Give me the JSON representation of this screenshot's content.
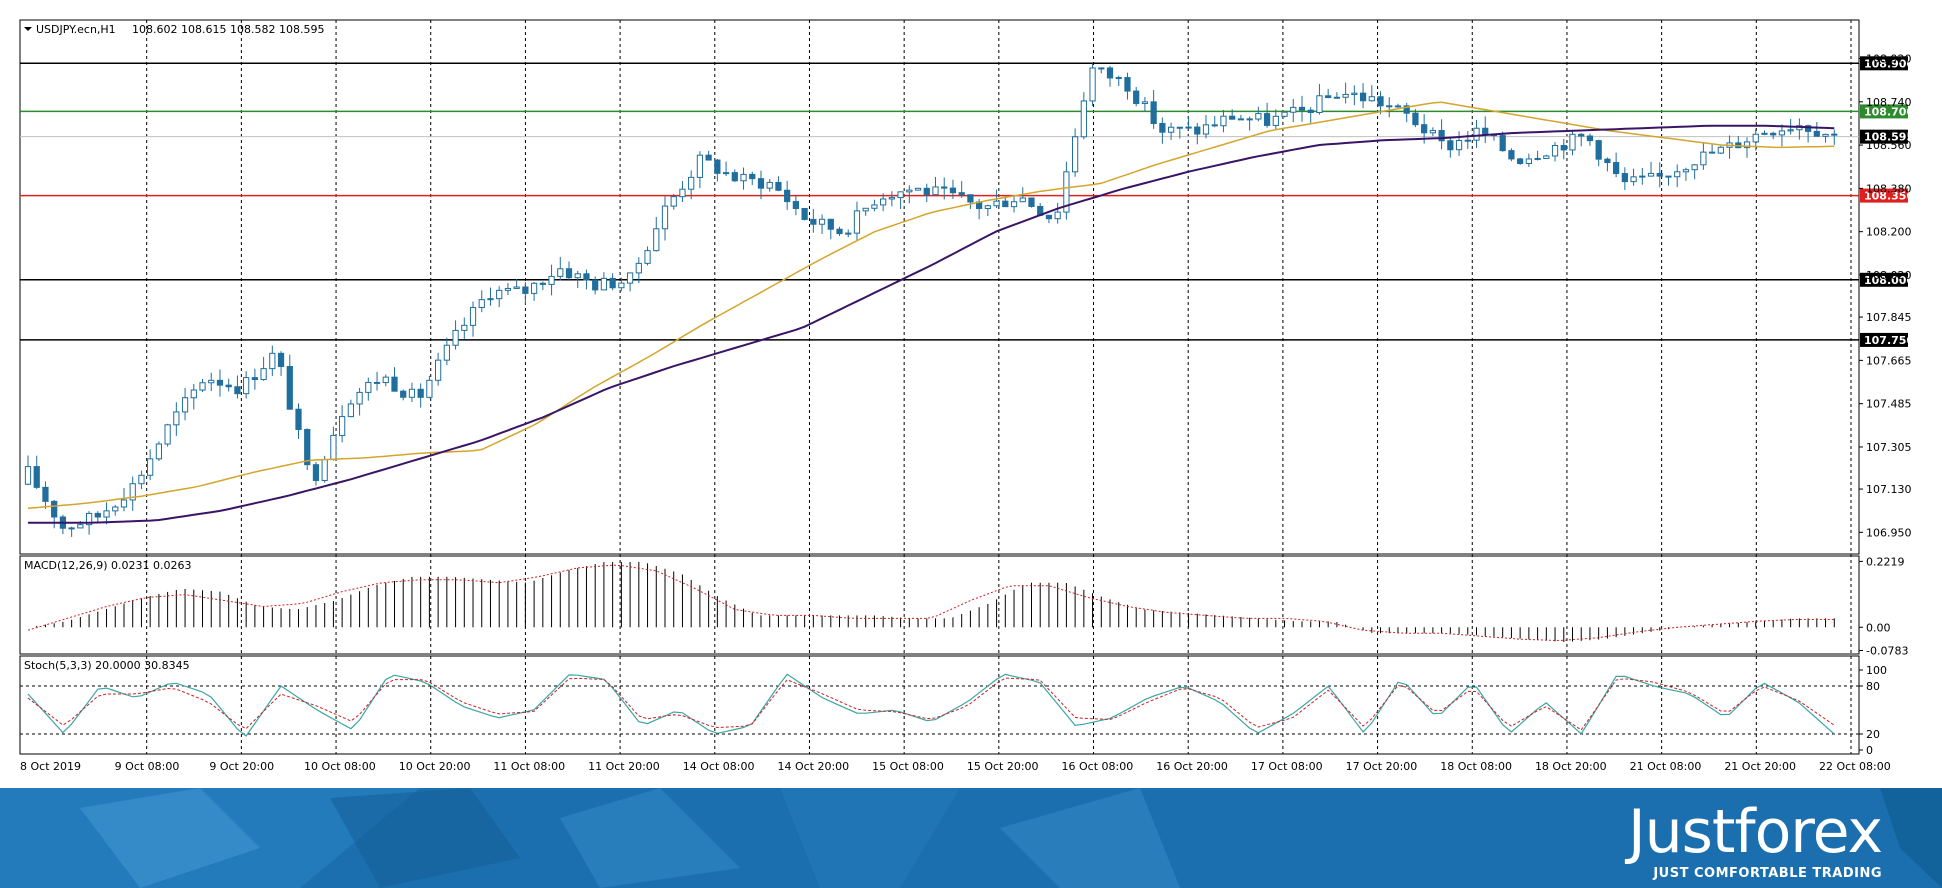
{
  "chart_header": {
    "symbol": "USDJPY.ecn,H1",
    "ohlc": "108.602 108.615 108.582 108.595"
  },
  "indicators": {
    "macd_label": "MACD(12,26,9) 0.0231 0.0263",
    "stoch_label": "Stoch(5,3,3) 20.0000 30.8345"
  },
  "branding": {
    "name": "Justforex",
    "slogan": "JUST COMFORTABLE TRADING"
  },
  "colors": {
    "candle": "#1f6e9e",
    "ma_fast": "#d4a52a",
    "ma_slow": "#3a1466",
    "support_line": "#e02020",
    "resistance_line": "#2d8a2d",
    "level_line": "#000000",
    "current_price": "#000000",
    "macd_signal": "#cc2222",
    "stoch_main": "#3aa6a6",
    "stoch_signal": "#cc2222",
    "banner": "#1b6fae"
  },
  "chart_data": [
    {
      "type": "candlestick",
      "title": "USDJPY.ecn,H1",
      "ylim": [
        106.86,
        109.08
      ],
      "y_ticks": [
        "108.920",
        "108.740",
        "108.560",
        "108.380",
        "108.200",
        "108.020",
        "107.845",
        "107.665",
        "107.485",
        "107.305",
        "107.130",
        "106.950"
      ],
      "x_ticks": [
        "8 Oct 2019",
        "9 Oct 08:00",
        "9 Oct 20:00",
        "10 Oct 08:00",
        "10 Oct 20:00",
        "11 Oct 08:00",
        "11 Oct 20:00",
        "14 Oct 08:00",
        "14 Oct 20:00",
        "15 Oct 08:00",
        "15 Oct 20:00",
        "16 Oct 08:00",
        "16 Oct 20:00",
        "17 Oct 08:00",
        "17 Oct 20:00",
        "18 Oct 08:00",
        "18 Oct 20:00",
        "21 Oct 08:00",
        "21 Oct 20:00",
        "22 Oct 08:00"
      ],
      "close_anchors": [
        107.2,
        106.97,
        107.02,
        107.15,
        107.4,
        107.6,
        107.55,
        107.7,
        107.15,
        107.5,
        107.6,
        107.5,
        107.75,
        107.95,
        107.95,
        108.05,
        107.98,
        108.0,
        108.3,
        108.5,
        108.42,
        108.4,
        108.25,
        108.2,
        108.35,
        108.38,
        108.35,
        108.3,
        108.35,
        108.25,
        108.88,
        108.82,
        108.62,
        108.62,
        108.68,
        108.66,
        108.7,
        108.78,
        108.75,
        108.68,
        108.55,
        108.62,
        108.5,
        108.55,
        108.6,
        108.4,
        108.42,
        108.5,
        108.55,
        108.62,
        108.65,
        108.6
      ],
      "candle_count": 208,
      "x_range_index": [
        0,
        208
      ],
      "moving_averages": [
        {
          "name": "MA fast",
          "values": [
            107.05,
            107.07,
            107.1,
            107.14,
            107.2,
            107.25,
            107.26,
            107.28,
            107.29,
            107.4,
            107.55,
            107.68,
            107.82,
            107.95,
            108.08,
            108.2,
            108.28,
            108.33,
            108.37,
            108.4,
            108.48,
            108.55,
            108.62,
            108.66,
            108.7,
            108.74,
            108.7,
            108.66,
            108.62,
            108.59,
            108.56,
            108.55,
            108.555
          ]
        },
        {
          "name": "MA slow",
          "values": [
            106.99,
            106.99,
            107.0,
            107.04,
            107.1,
            107.17,
            107.25,
            107.33,
            107.43,
            107.55,
            107.64,
            107.72,
            107.8,
            107.93,
            108.06,
            108.2,
            108.3,
            108.38,
            108.45,
            108.51,
            108.56,
            108.58,
            108.59,
            108.61,
            108.62,
            108.63,
            108.64,
            108.64,
            108.63
          ]
        }
      ],
      "horizontal_levels": [
        {
          "value": 108.9,
          "label": "108.900",
          "color": "#000000"
        },
        {
          "value": 108.7,
          "label": "108.700",
          "color": "#2d8a2d"
        },
        {
          "value": 108.595,
          "label": "108.595",
          "color": "#000000"
        },
        {
          "value": 108.35,
          "label": "108.350",
          "color": "#e02020"
        },
        {
          "value": 108.0,
          "label": "108.000",
          "color": "#000000"
        },
        {
          "value": 107.75,
          "label": "107.750",
          "color": "#000000"
        }
      ]
    },
    {
      "type": "bar",
      "title": "MACD(12,26,9) 0.0231 0.0263",
      "ylim": [
        -0.09,
        0.24
      ],
      "y_ticks": [
        "0.2219",
        "0.00",
        "-0.0783"
      ],
      "histogram_anchors": [
        0.0,
        0.02,
        0.06,
        0.1,
        0.13,
        0.12,
        0.07,
        0.06,
        0.09,
        0.14,
        0.17,
        0.17,
        0.16,
        0.15,
        0.19,
        0.22,
        0.22,
        0.18,
        0.1,
        0.04,
        0.04,
        0.04,
        0.04,
        0.03,
        0.03,
        0.08,
        0.15,
        0.15,
        0.1,
        0.06,
        0.05,
        0.04,
        0.03,
        0.02,
        0.02,
        -0.02,
        -0.02,
        -0.02,
        -0.03,
        -0.04,
        -0.05,
        -0.04,
        -0.02,
        0.0,
        0.01,
        0.02,
        0.03,
        0.03
      ],
      "signal_anchors": [
        -0.01,
        0.03,
        0.07,
        0.1,
        0.11,
        0.09,
        0.07,
        0.08,
        0.12,
        0.15,
        0.16,
        0.16,
        0.15,
        0.17,
        0.2,
        0.21,
        0.19,
        0.13,
        0.06,
        0.04,
        0.04,
        0.03,
        0.03,
        0.03,
        0.09,
        0.14,
        0.14,
        0.1,
        0.07,
        0.05,
        0.04,
        0.03,
        0.03,
        0.02,
        -0.01,
        -0.02,
        -0.02,
        -0.03,
        -0.04,
        -0.045,
        -0.035,
        -0.015,
        0.0,
        0.01,
        0.02,
        0.026,
        0.0263
      ]
    },
    {
      "type": "line",
      "title": "Stoch(5,3,3) 20.0000 30.8345",
      "ylim": [
        0,
        100
      ],
      "y_ticks": [
        "100",
        "80",
        "20",
        "0"
      ],
      "levels": [
        80,
        20
      ],
      "main_anchors": [
        70,
        20,
        80,
        65,
        85,
        70,
        15,
        80,
        50,
        25,
        95,
        85,
        55,
        40,
        50,
        95,
        88,
        30,
        50,
        20,
        30,
        95,
        65,
        45,
        50,
        35,
        60,
        95,
        85,
        30,
        40,
        65,
        80,
        60,
        20,
        45,
        80,
        20,
        90,
        40,
        85,
        20,
        60,
        20,
        95,
        80,
        70,
        40,
        85,
        60,
        20
      ],
      "signal_anchors": [
        65,
        30,
        70,
        70,
        78,
        60,
        25,
        70,
        55,
        35,
        88,
        88,
        60,
        45,
        48,
        90,
        88,
        38,
        45,
        28,
        30,
        88,
        70,
        50,
        48,
        38,
        55,
        90,
        88,
        40,
        38,
        60,
        78,
        65,
        28,
        40,
        75,
        28,
        85,
        45,
        78,
        28,
        55,
        25,
        90,
        85,
        72,
        45,
        80,
        62,
        31
      ]
    }
  ]
}
